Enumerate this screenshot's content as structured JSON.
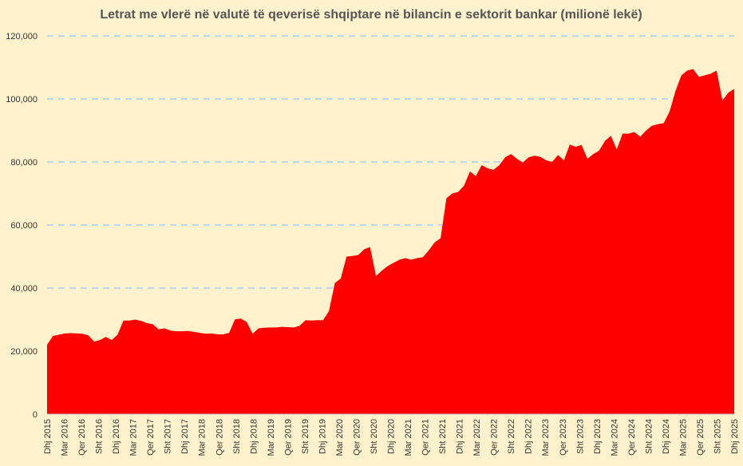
{
  "chart_data": {
    "type": "area",
    "title": "Letrat me vlerë në valutë të qeverisë shqiptare në bilancin e sektorit bankar (milionë lekë)",
    "xlabel": "",
    "ylabel": "",
    "ylim": [
      0,
      120000
    ],
    "yticks": [
      0,
      20000,
      40000,
      60000,
      80000,
      100000,
      120000
    ],
    "ytick_labels": [
      "0",
      "20,000",
      "40,000",
      "60,000",
      "80,000",
      "100,000",
      "120,000"
    ],
    "grid": true,
    "legend": "none",
    "color": "#ff0000",
    "x_labels": [
      "Dhj 2015",
      "Mar 2016",
      "Qer 2016",
      "Sht 2016",
      "Dhj 2016",
      "Mar 2017",
      "Qer 2017",
      "Sht 2017",
      "Dhj 2017",
      "Mar 2018",
      "Qer 2018",
      "Sht 2018",
      "Dhj 2018",
      "Mar 2019",
      "Qer 2019",
      "Sht 2019",
      "Dhj 2019",
      "Mar 2020",
      "Qer 2020",
      "Sht 2020",
      "Dhj 2020",
      "Mar 2021",
      "Qer 2021",
      "Sht 2021",
      "Dhj 2021",
      "Mar 2022",
      "Qer 2022",
      "Sht 2022",
      "Dhj 2022",
      "Mar 2023",
      "Qer 2023",
      "Sht 2023",
      "Dhj 2023",
      "Mar 2024",
      "Qer 2024",
      "Sht 2024",
      "Dhj 2024",
      "Mar 2025",
      "Qer 2025",
      "Sht 2025",
      "Dhj 2025"
    ],
    "values": [
      22000,
      24800,
      25200,
      25600,
      25700,
      25600,
      25500,
      25000,
      23000,
      23500,
      24500,
      23500,
      25200,
      29700,
      29700,
      30000,
      29600,
      28900,
      28500,
      26900,
      27200,
      26500,
      26300,
      26300,
      26400,
      26100,
      25800,
      25500,
      25600,
      25300,
      25300,
      25800,
      30100,
      30300,
      29200,
      25500,
      27200,
      27400,
      27500,
      27500,
      27700,
      27600,
      27500,
      28000,
      29800,
      29700,
      29800,
      29800,
      32700,
      41600,
      43000,
      50000,
      50200,
      50500,
      52300,
      53000,
      43800,
      45500,
      47000,
      48000,
      49000,
      49500,
      49000,
      49500,
      49800,
      52000,
      54500,
      55800,
      68500,
      70000,
      70500,
      72500,
      77000,
      75500,
      79000,
      78000,
      77500,
      79000,
      81500,
      82500,
      81000,
      79800,
      81500,
      82000,
      81600,
      80500,
      80000,
      82200,
      80500,
      85500,
      84800,
      85400,
      81000,
      82500,
      83600,
      86700,
      88300,
      84000,
      89000,
      89000,
      89500,
      88000,
      90000,
      91500,
      92000,
      92300,
      96000,
      102500,
      107500,
      109000,
      109500,
      107000,
      107500,
      108000,
      109000,
      99500,
      102000,
      103200
    ]
  }
}
